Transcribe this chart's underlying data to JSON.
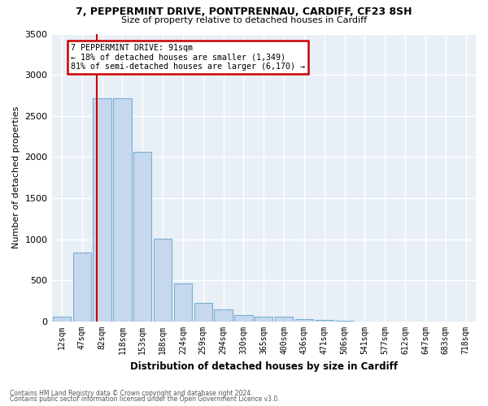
{
  "title1": "7, PEPPERMINT DRIVE, PONTPRENNAU, CARDIFF, CF23 8SH",
  "title2": "Size of property relative to detached houses in Cardiff",
  "xlabel": "Distribution of detached houses by size in Cardiff",
  "ylabel": "Number of detached properties",
  "bar_labels": [
    "12sqm",
    "47sqm",
    "82sqm",
    "118sqm",
    "153sqm",
    "188sqm",
    "224sqm",
    "259sqm",
    "294sqm",
    "330sqm",
    "365sqm",
    "400sqm",
    "436sqm",
    "471sqm",
    "506sqm",
    "541sqm",
    "577sqm",
    "612sqm",
    "647sqm",
    "683sqm",
    "718sqm"
  ],
  "bar_values": [
    60,
    840,
    2720,
    2720,
    2060,
    1005,
    460,
    225,
    150,
    80,
    60,
    55,
    30,
    25,
    10,
    5,
    5,
    5,
    0,
    0,
    0
  ],
  "bar_color": "#c5d8ed",
  "bar_edge_color": "#7aafd4",
  "vline_color": "#cc0000",
  "annotation_text": "7 PEPPERMINT DRIVE: 91sqm\n← 18% of detached houses are smaller (1,349)\n81% of semi-detached houses are larger (6,170) →",
  "ylim": [
    0,
    3500
  ],
  "yticks": [
    0,
    500,
    1000,
    1500,
    2000,
    2500,
    3000,
    3500
  ],
  "bg_color": "#e8eff7",
  "grid_color": "#ffffff",
  "footer1": "Contains HM Land Registry data © Crown copyright and database right 2024.",
  "footer2": "Contains public sector information licensed under the Open Government Licence v3.0."
}
